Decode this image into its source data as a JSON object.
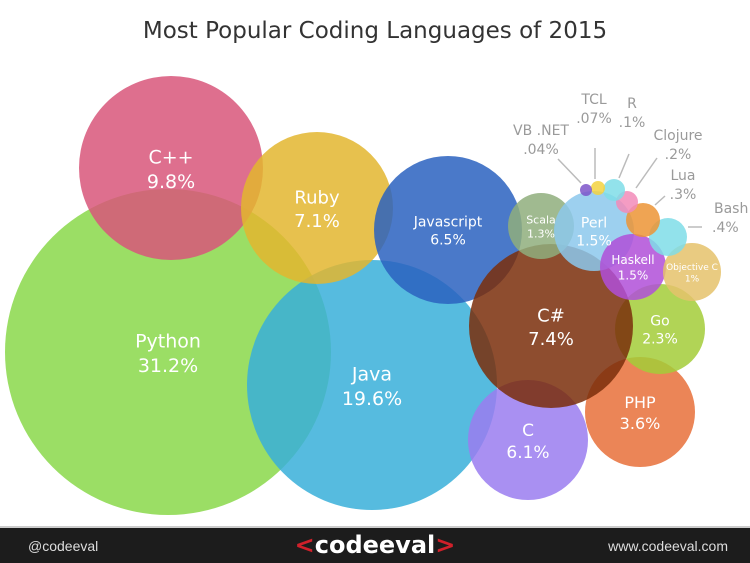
{
  "title": "Most Popular Coding Languages of 2015",
  "footer": {
    "handle": "@codeeval",
    "logo_text": "<code*eval>",
    "logo_left": "<",
    "logo_word": "codeeval",
    "logo_right": ">",
    "website": "www.codeeval.com"
  },
  "chart_data": {
    "type": "bubble",
    "title": "Most Popular Coding Languages of 2015",
    "unit": "%",
    "items": [
      {
        "name": "Python",
        "value": 31.2,
        "label": "31.2%",
        "color": "#8ad84a"
      },
      {
        "name": "Java",
        "value": 19.6,
        "label": "19.6%",
        "color": "#38afd9"
      },
      {
        "name": "C++",
        "value": 9.8,
        "label": "9.8%",
        "color": "#d8567a"
      },
      {
        "name": "Ruby",
        "value": 7.1,
        "label": "7.1%",
        "color": "#e3b62f"
      },
      {
        "name": "Javascript",
        "value": 6.5,
        "label": "6.5%",
        "color": "#2a62c0"
      },
      {
        "name": "C",
        "value": 6.1,
        "label": "6.1%",
        "color": "#9a7cf0"
      },
      {
        "name": "PHP",
        "value": 3.6,
        "label": "3.6%",
        "color": "#e8703a"
      },
      {
        "name": "Go",
        "value": 2.3,
        "label": "2.3%",
        "color": "#a3cc38"
      },
      {
        "name": "C#",
        "value": 7.4,
        "label": "7.4%",
        "color": "#7a2e0b"
      },
      {
        "name": "Scala",
        "value": 1.3,
        "label": "1.3%",
        "color": "#8fae7c"
      },
      {
        "name": "Perl",
        "value": 1.5,
        "label": "1.5%",
        "color": "#8cc8ec"
      },
      {
        "name": "Haskell",
        "value": 1.5,
        "label": "1.5%",
        "color": "#b04fd8"
      },
      {
        "name": "Objective C",
        "value": 1,
        "label": "1%",
        "color": "#e5c26b"
      },
      {
        "name": "Bash",
        "value": 0.4,
        "label": ".4%",
        "color": "#7fdde8"
      },
      {
        "name": "Lua",
        "value": 0.3,
        "label": ".3%",
        "color": "#ec9435"
      },
      {
        "name": "Clojure",
        "value": 0.2,
        "label": ".2%",
        "color": "#f28bb8"
      },
      {
        "name": "R",
        "value": 0.1,
        "label": ".1%",
        "color": "#7fdde8"
      },
      {
        "name": "TCL",
        "value": 0.07,
        "label": ".07%",
        "color": "#f3d23f"
      },
      {
        "name": "VB .NET",
        "value": 0.04,
        "label": ".04%",
        "color": "#7d55c9"
      }
    ]
  }
}
